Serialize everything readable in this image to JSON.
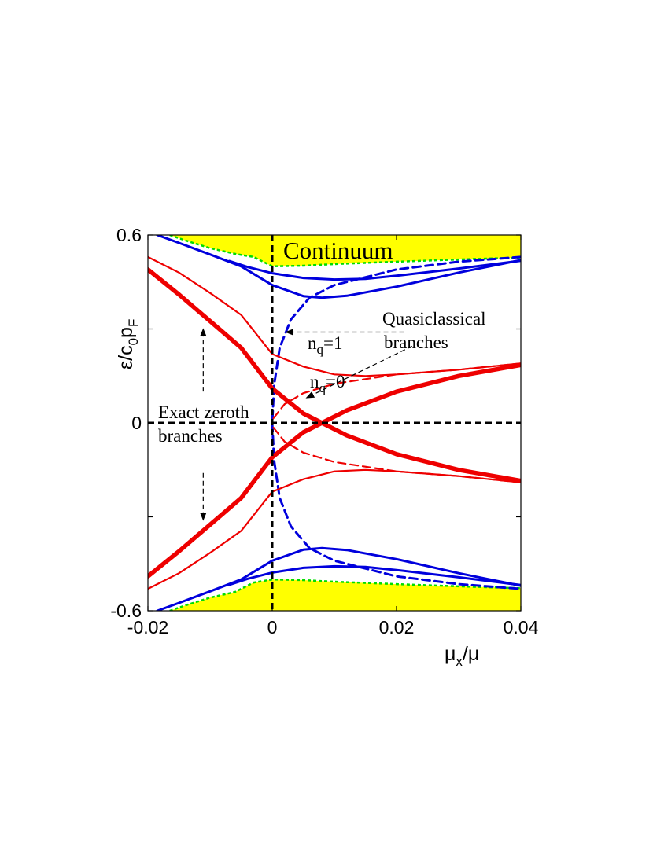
{
  "chart_data": {
    "type": "line",
    "title": "",
    "xlabel": {
      "main": "μ",
      "sub": "x",
      "tail": "/μ"
    },
    "ylabel": {
      "main": "ε/c",
      "sub0": "0",
      "p": "p",
      "subF": "F"
    },
    "xlim": [
      -0.02,
      0.04
    ],
    "ylim": [
      -0.6,
      0.6
    ],
    "x_ticks": [
      {
        "value": -0.02,
        "label": "-0.02"
      },
      {
        "value": 0,
        "label": "0"
      },
      {
        "value": 0.02,
        "label": "0.02"
      },
      {
        "value": 0.04,
        "label": "0.04"
      }
    ],
    "y_ticks": [
      {
        "value": 0.6,
        "label": "0.6"
      },
      {
        "value": 0.3,
        "label": ""
      },
      {
        "value": 0,
        "label": "0"
      },
      {
        "value": -0.3,
        "label": ""
      },
      {
        "value": -0.6,
        "label": "-0.6"
      }
    ],
    "colors": {
      "continuum": "#ffff00",
      "edge": "#00dd00",
      "blue": "#0000dd",
      "red": "#ee0000",
      "axis": "#000000"
    },
    "continuum_upper_edge": [
      [
        -0.0165,
        0.6
      ],
      [
        -0.014,
        0.583
      ],
      [
        -0.01,
        0.558
      ],
      [
        -0.006,
        0.54
      ],
      [
        -0.003,
        0.53
      ],
      [
        0,
        0.5
      ],
      [
        0.005,
        0.502
      ],
      [
        0.01,
        0.507
      ],
      [
        0.02,
        0.515
      ],
      [
        0.03,
        0.522
      ],
      [
        0.04,
        0.528
      ]
    ],
    "continuum_lower_edge": [
      [
        -0.0165,
        -0.6
      ],
      [
        -0.014,
        -0.583
      ],
      [
        -0.01,
        -0.558
      ],
      [
        -0.006,
        -0.54
      ],
      [
        -0.003,
        -0.51
      ],
      [
        0,
        -0.5
      ],
      [
        0.005,
        -0.502
      ],
      [
        0.01,
        -0.507
      ],
      [
        0.02,
        -0.515
      ],
      [
        0.03,
        -0.522
      ],
      [
        0.04,
        -0.528
      ]
    ],
    "series": [
      {
        "name": "blue-outer-upper",
        "color": "blue",
        "width": 3,
        "dash": false,
        "points": [
          [
            -0.0069,
            0.517
          ],
          [
            -0.004,
            0.498
          ],
          [
            0,
            0.478
          ],
          [
            0.005,
            0.463
          ],
          [
            0.01,
            0.458
          ],
          [
            0.015,
            0.46
          ],
          [
            0.02,
            0.47
          ],
          [
            0.03,
            0.493
          ],
          [
            0.04,
            0.518
          ]
        ]
      },
      {
        "name": "blue-inner-upper",
        "color": "blue",
        "width": 3,
        "dash": false,
        "points": [
          [
            -0.0185,
            0.6
          ],
          [
            -0.015,
            0.575
          ],
          [
            -0.01,
            0.538
          ],
          [
            -0.005,
            0.5
          ],
          [
            0,
            0.44
          ],
          [
            0.005,
            0.405
          ],
          [
            0.008,
            0.4
          ],
          [
            0.012,
            0.406
          ],
          [
            0.02,
            0.435
          ],
          [
            0.03,
            0.48
          ],
          [
            0.04,
            0.52
          ]
        ]
      },
      {
        "name": "blue-outer-lower",
        "color": "blue",
        "width": 3,
        "dash": false,
        "points": [
          [
            -0.0069,
            -0.517
          ],
          [
            -0.004,
            -0.498
          ],
          [
            0,
            -0.478
          ],
          [
            0.005,
            -0.463
          ],
          [
            0.01,
            -0.458
          ],
          [
            0.015,
            -0.46
          ],
          [
            0.02,
            -0.47
          ],
          [
            0.03,
            -0.493
          ],
          [
            0.04,
            -0.518
          ]
        ]
      },
      {
        "name": "blue-inner-lower",
        "color": "blue",
        "width": 3,
        "dash": false,
        "points": [
          [
            -0.0185,
            -0.6
          ],
          [
            -0.015,
            -0.575
          ],
          [
            -0.01,
            -0.538
          ],
          [
            -0.005,
            -0.5
          ],
          [
            0,
            -0.44
          ],
          [
            0.005,
            -0.405
          ],
          [
            0.008,
            -0.4
          ],
          [
            0.012,
            -0.406
          ],
          [
            0.02,
            -0.435
          ],
          [
            0.03,
            -0.48
          ],
          [
            0.04,
            -0.52
          ]
        ]
      },
      {
        "name": "blue-quasiclassical",
        "color": "blue",
        "width": 3,
        "dash": true,
        "points": [
          [
            0.04,
            0.53
          ],
          [
            0.03,
            0.515
          ],
          [
            0.02,
            0.49
          ],
          [
            0.01,
            0.44
          ],
          [
            0.006,
            0.4
          ],
          [
            0.003,
            0.33
          ],
          [
            0.0012,
            0.24
          ],
          [
            0.0003,
            0.12
          ],
          [
            0,
            0
          ],
          [
            0.0003,
            -0.12
          ],
          [
            0.0012,
            -0.24
          ],
          [
            0.003,
            -0.33
          ],
          [
            0.006,
            -0.4
          ],
          [
            0.01,
            -0.44
          ],
          [
            0.02,
            -0.49
          ],
          [
            0.03,
            -0.515
          ],
          [
            0.04,
            -0.53
          ]
        ]
      },
      {
        "name": "red-thin-upper",
        "color": "red",
        "width": 2.2,
        "dash": false,
        "points": [
          [
            -0.02,
            0.53
          ],
          [
            -0.015,
            0.48
          ],
          [
            -0.01,
            0.415
          ],
          [
            -0.005,
            0.345
          ],
          [
            0,
            0.22
          ],
          [
            0.005,
            0.18
          ],
          [
            0.01,
            0.155
          ],
          [
            0.015,
            0.15
          ],
          [
            0.02,
            0.155
          ],
          [
            0.03,
            0.17
          ],
          [
            0.04,
            0.19
          ]
        ]
      },
      {
        "name": "red-thin-lower",
        "color": "red",
        "width": 2.2,
        "dash": false,
        "points": [
          [
            -0.02,
            -0.53
          ],
          [
            -0.015,
            -0.48
          ],
          [
            -0.01,
            -0.415
          ],
          [
            -0.005,
            -0.345
          ],
          [
            0,
            -0.22
          ],
          [
            0.005,
            -0.18
          ],
          [
            0.01,
            -0.155
          ],
          [
            0.015,
            -0.15
          ],
          [
            0.02,
            -0.155
          ],
          [
            0.03,
            -0.17
          ],
          [
            0.04,
            -0.19
          ]
        ]
      },
      {
        "name": "red-quasiclassical-upper",
        "color": "red",
        "width": 2.2,
        "dash": true,
        "points": [
          [
            0.0002,
            0.015
          ],
          [
            0.002,
            0.06
          ],
          [
            0.005,
            0.095
          ],
          [
            0.01,
            0.125
          ],
          [
            0.02,
            0.155
          ],
          [
            0.03,
            0.17
          ],
          [
            0.04,
            0.19
          ]
        ]
      },
      {
        "name": "red-quasiclassical-lower",
        "color": "red",
        "width": 2.2,
        "dash": true,
        "points": [
          [
            0.0002,
            -0.015
          ],
          [
            0.002,
            -0.06
          ],
          [
            0.005,
            -0.095
          ],
          [
            0.01,
            -0.125
          ],
          [
            0.02,
            -0.155
          ],
          [
            0.03,
            -0.17
          ],
          [
            0.04,
            -0.19
          ]
        ]
      },
      {
        "name": "red-exact-zeroth-1",
        "color": "red",
        "width": 5.5,
        "dash": false,
        "points": [
          [
            -0.02,
            0.49
          ],
          [
            -0.015,
            0.41
          ],
          [
            -0.01,
            0.325
          ],
          [
            -0.005,
            0.24
          ],
          [
            0,
            0.11
          ],
          [
            0.005,
            0.03
          ],
          [
            0.008,
            0
          ],
          [
            0.012,
            -0.04
          ],
          [
            0.02,
            -0.1
          ],
          [
            0.03,
            -0.15
          ],
          [
            0.04,
            -0.185
          ]
        ]
      },
      {
        "name": "red-exact-zeroth-2",
        "color": "red",
        "width": 5.5,
        "dash": false,
        "points": [
          [
            -0.02,
            -0.49
          ],
          [
            -0.015,
            -0.41
          ],
          [
            -0.01,
            -0.325
          ],
          [
            -0.005,
            -0.24
          ],
          [
            0,
            -0.11
          ],
          [
            0.005,
            -0.03
          ],
          [
            0.008,
            0
          ],
          [
            0.012,
            0.04
          ],
          [
            0.02,
            0.1
          ],
          [
            0.03,
            0.15
          ],
          [
            0.04,
            0.185
          ]
        ]
      }
    ],
    "annotations": {
      "continuum": "Continuum",
      "nq1_main": "n",
      "nq1_sub": "q",
      "nq1_tail": "=1",
      "nq0_main": "n",
      "nq0_sub": "q",
      "nq0_tail": "=0",
      "quasi_line1": "Quasiclassical",
      "quasi_line2": "branches",
      "exact_line1": "Exact zeroth",
      "exact_line2": "branches"
    },
    "arrows": [
      {
        "name": "arrow-nq1",
        "from": [
          0.0212,
          0.29
        ],
        "to": [
          0.0022,
          0.29
        ]
      },
      {
        "name": "arrow-nq0",
        "from": [
          0.0225,
          0.245
        ],
        "to": [
          0.0055,
          0.08
        ]
      },
      {
        "name": "arrow-exact-up",
        "from": [
          -0.0111,
          0.1
        ],
        "to": [
          -0.0111,
          0.3
        ]
      },
      {
        "name": "arrow-exact-down",
        "from": [
          -0.0111,
          -0.16
        ],
        "to": [
          -0.0111,
          -0.31
        ]
      }
    ]
  }
}
